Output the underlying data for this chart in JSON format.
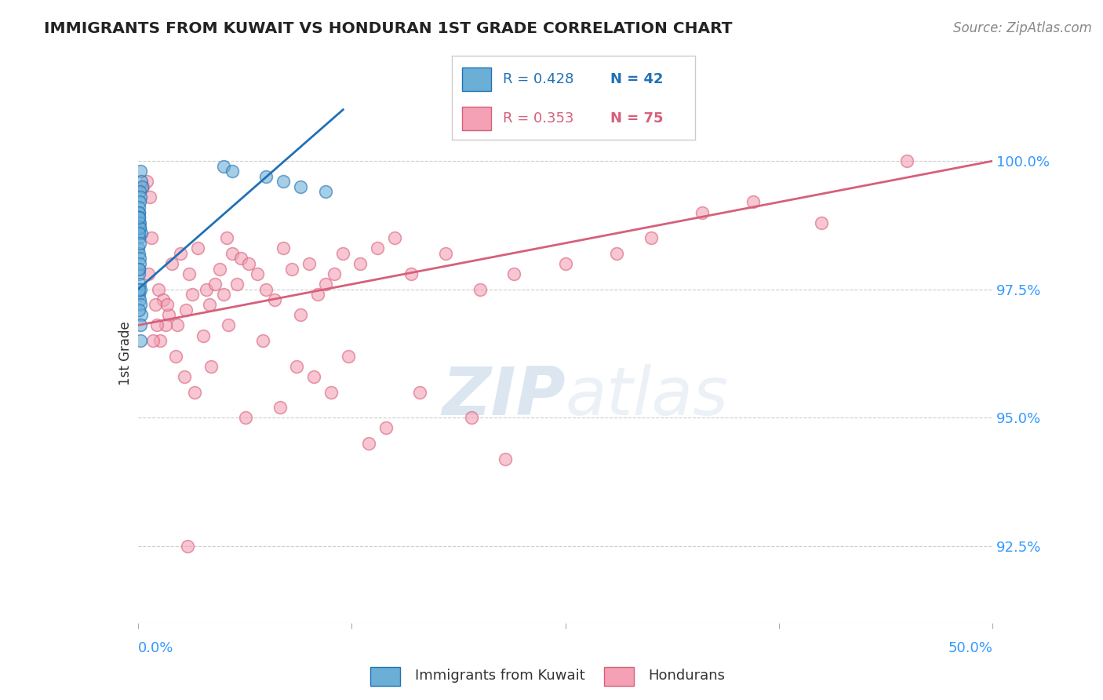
{
  "title": "IMMIGRANTS FROM KUWAIT VS HONDURAN 1ST GRADE CORRELATION CHART",
  "source": "Source: ZipAtlas.com",
  "ylabel": "1st Grade",
  "ytick_labels": [
    "92.5%",
    "95.0%",
    "97.5%",
    "100.0%"
  ],
  "ytick_values": [
    92.5,
    95.0,
    97.5,
    100.0
  ],
  "xlim": [
    0.0,
    50.0
  ],
  "ylim": [
    91.0,
    101.5
  ],
  "legend_r1": "R = 0.428",
  "legend_n1": "N = 42",
  "legend_r2": "R = 0.353",
  "legend_n2": "N = 75",
  "legend_label1": "Immigrants from Kuwait",
  "legend_label2": "Hondurans",
  "blue_color": "#6baed6",
  "blue_line_color": "#2171b5",
  "pink_color": "#f4a0b5",
  "pink_line_color": "#d6607a",
  "blue_scatter_x": [
    0.15,
    0.2,
    0.25,
    0.1,
    0.15,
    0.1,
    0.05,
    0.08,
    0.12,
    0.18,
    0.05,
    0.03,
    0.08,
    0.12,
    0.06,
    0.04,
    0.1,
    0.07,
    0.09,
    0.14,
    0.2,
    0.15,
    0.05,
    0.08,
    0.06,
    0.1,
    0.12,
    0.07,
    0.06,
    0.11,
    0.09,
    0.16,
    0.04,
    0.13,
    0.07,
    5.0,
    5.5,
    7.5,
    8.5,
    9.5,
    11.0,
    0.08
  ],
  "blue_scatter_y": [
    99.8,
    99.6,
    99.5,
    99.4,
    99.3,
    99.2,
    99.0,
    98.8,
    98.7,
    98.6,
    98.5,
    98.3,
    98.2,
    98.1,
    97.9,
    97.8,
    97.6,
    97.4,
    97.3,
    97.2,
    97.0,
    96.8,
    99.1,
    99.0,
    98.9,
    98.8,
    98.7,
    98.6,
    98.9,
    98.4,
    98.0,
    97.5,
    97.1,
    96.5,
    97.9,
    99.9,
    99.8,
    99.7,
    99.6,
    99.5,
    99.4,
    97.5
  ],
  "pink_scatter_x": [
    0.3,
    0.5,
    0.7,
    0.6,
    0.8,
    1.2,
    1.5,
    1.8,
    2.0,
    2.3,
    2.5,
    2.8,
    3.0,
    3.2,
    3.5,
    3.8,
    4.0,
    4.2,
    4.5,
    4.8,
    5.0,
    5.2,
    5.5,
    5.8,
    6.0,
    6.5,
    7.0,
    7.5,
    8.0,
    8.5,
    9.0,
    9.5,
    10.0,
    10.5,
    11.0,
    11.5,
    12.0,
    13.0,
    14.0,
    15.0,
    16.0,
    18.0,
    20.0,
    22.0,
    25.0,
    28.0,
    30.0,
    33.0,
    36.0,
    40.0,
    45.0,
    1.0,
    1.3,
    1.6,
    2.2,
    2.7,
    3.3,
    4.3,
    5.3,
    6.3,
    7.3,
    8.3,
    9.3,
    10.3,
    11.3,
    12.3,
    13.5,
    14.5,
    16.5,
    19.5,
    21.5,
    0.9,
    1.1,
    1.7,
    2.9
  ],
  "pink_scatter_y": [
    99.5,
    99.6,
    99.3,
    97.8,
    98.5,
    97.5,
    97.3,
    97.0,
    98.0,
    96.8,
    98.2,
    97.1,
    97.8,
    97.4,
    98.3,
    96.6,
    97.5,
    97.2,
    97.6,
    97.9,
    97.4,
    98.5,
    98.2,
    97.6,
    98.1,
    98.0,
    97.8,
    97.5,
    97.3,
    98.3,
    97.9,
    97.0,
    98.0,
    97.4,
    97.6,
    97.8,
    98.2,
    98.0,
    98.3,
    98.5,
    97.8,
    98.2,
    97.5,
    97.8,
    98.0,
    98.2,
    98.5,
    99.0,
    99.2,
    98.8,
    100.0,
    97.2,
    96.5,
    96.8,
    96.2,
    95.8,
    95.5,
    96.0,
    96.8,
    95.0,
    96.5,
    95.2,
    96.0,
    95.8,
    95.5,
    96.2,
    94.5,
    94.8,
    95.5,
    95.0,
    94.2,
    96.5,
    96.8,
    97.2,
    92.5
  ],
  "blue_line_x": [
    0.0,
    12.0
  ],
  "blue_line_y": [
    97.5,
    101.0
  ],
  "pink_line_x": [
    0.0,
    50.0
  ],
  "pink_line_y": [
    96.8,
    100.0
  ],
  "watermark_zip": "ZIP",
  "watermark_atlas": "atlas",
  "background_color": "#ffffff",
  "grid_color": "#cccccc"
}
